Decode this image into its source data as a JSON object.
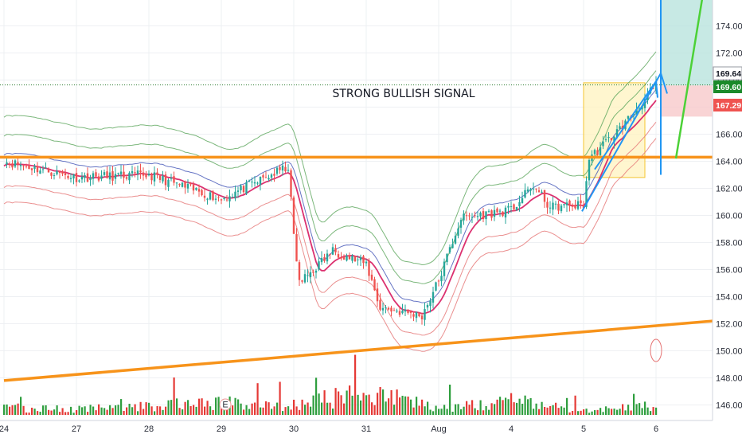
{
  "chart_data": {
    "type": "candlestick",
    "annotation": "STRONG BULLISH SIGNAL",
    "event_marker": "E",
    "price_tags": [
      {
        "value": "169.64",
        "kind": "last-price"
      },
      {
        "value": "169.60",
        "kind": "indicator"
      },
      {
        "value": "167.29",
        "kind": "indicator"
      }
    ],
    "colors": {
      "up": "#26a69a",
      "down": "#ef5350",
      "volume_up": "#2e9e3e",
      "volume_down": "#e53935",
      "trendline": "#f7931a",
      "envelope_outer": "#5aa55a",
      "envelope_inner_blue": "#3f51b5",
      "ma_pink": "#d81b60",
      "envelope_red": "#e57373",
      "projection_blue": "#2196f3",
      "projection_green": "#4cd137",
      "highlight_box": "#fff3bf",
      "target_zone": "#b9e4dd",
      "stop_zone": "#f8c9cb"
    },
    "y_axis": {
      "ticks": [
        146,
        148,
        150,
        152,
        154,
        156,
        158,
        160,
        162,
        164,
        166,
        168,
        170,
        172,
        174
      ],
      "tick_labels": [
        "146.00",
        "148.00",
        "150.00",
        "152.00",
        "154.00",
        "156.00",
        "158.00",
        "160.00",
        "162.00",
        "164.00",
        "166.00",
        "168.00",
        "170.00",
        "172.00",
        "174.00"
      ],
      "range": [
        145,
        175
      ]
    },
    "x_axis": {
      "tick_labels": [
        "24",
        "27",
        "28",
        "29",
        "30",
        "31",
        "Aug",
        "4",
        "5",
        "6"
      ],
      "tick_bars": [
        0,
        26,
        52,
        78,
        104,
        130,
        156,
        182,
        208,
        234
      ]
    },
    "horizontal_line": 164.3,
    "trendline": {
      "from": [
        0,
        147.8
      ],
      "to": [
        262,
        152.2
      ]
    },
    "last_price_line": 169.64,
    "key_levels": [
      {
        "bar": 0,
        "price": 164.0
      },
      {
        "bar": 26,
        "price": 162.8
      },
      {
        "bar": 52,
        "price": 163.0
      },
      {
        "bar": 78,
        "price": 161.2
      },
      {
        "bar": 102,
        "price": 163.6
      },
      {
        "bar": 104,
        "price": 158.5
      },
      {
        "bar": 106,
        "price": 155.0
      },
      {
        "bar": 118,
        "price": 157.4
      },
      {
        "bar": 130,
        "price": 156.4
      },
      {
        "bar": 135,
        "price": 153.2
      },
      {
        "bar": 150,
        "price": 152.6
      },
      {
        "bar": 156,
        "price": 155.2
      },
      {
        "bar": 164,
        "price": 159.8
      },
      {
        "bar": 182,
        "price": 160.4
      },
      {
        "bar": 190,
        "price": 162.2
      },
      {
        "bar": 196,
        "price": 160.6
      },
      {
        "bar": 208,
        "price": 160.8
      },
      {
        "bar": 210,
        "price": 164.2
      },
      {
        "bar": 222,
        "price": 166.6
      },
      {
        "bar": 234,
        "price": 169.6
      }
    ],
    "volume_points": [
      {
        "bar": 0,
        "value": 0.55
      },
      {
        "bar": 26,
        "value": 0.45
      },
      {
        "bar": 52,
        "value": 0.7
      },
      {
        "bar": 60,
        "value": 1.0
      },
      {
        "bar": 104,
        "value": 0.8
      },
      {
        "bar": 130,
        "value": 1.8
      },
      {
        "bar": 156,
        "value": 0.6
      },
      {
        "bar": 182,
        "value": 1.1
      },
      {
        "bar": 208,
        "value": 0.35
      },
      {
        "bar": 234,
        "value": 0.8
      }
    ],
    "projection": {
      "blue_vertical_bar": 234,
      "blue_low": 160.2,
      "blue_high": 175,
      "green_from": [
        240,
        164.2
      ],
      "green_to": [
        250,
        176
      ]
    }
  }
}
